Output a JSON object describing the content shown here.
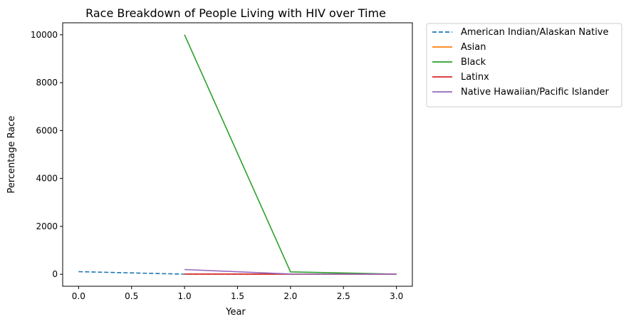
{
  "chart_data": {
    "type": "line",
    "title": "Race Breakdown of People Living with HIV over Time",
    "xlabel": "Year",
    "ylabel": "Percentage Race",
    "xlim": [
      -0.15,
      3.15
    ],
    "ylim": [
      -500,
      10500
    ],
    "xticks": [
      0.0,
      0.5,
      1.0,
      1.5,
      2.0,
      2.5,
      3.0
    ],
    "xtick_labels": [
      "0.0",
      "0.5",
      "1.0",
      "1.5",
      "2.0",
      "2.5",
      "3.0"
    ],
    "yticks": [
      0,
      2000,
      4000,
      6000,
      8000,
      10000
    ],
    "ytick_labels": [
      "0",
      "2000",
      "4000",
      "6000",
      "8000",
      "10000"
    ],
    "grid": false,
    "legend_position": "outside-right-top",
    "series": [
      {
        "name": "American Indian/Alaskan Native",
        "color": "#1f77b4",
        "dashed": true,
        "x": [
          0,
          1,
          2,
          3
        ],
        "y": [
          110,
          5,
          5,
          5
        ]
      },
      {
        "name": "Asian",
        "color": "#ff7f0e",
        "dashed": false,
        "x": [
          1,
          2,
          3
        ],
        "y": [
          10,
          5,
          5
        ]
      },
      {
        "name": "Black",
        "color": "#2ca02c",
        "dashed": false,
        "x": [
          1,
          2,
          3
        ],
        "y": [
          10000,
          100,
          5
        ]
      },
      {
        "name": "Latinx",
        "color": "#d62728",
        "dashed": false,
        "x": [
          1,
          2,
          3
        ],
        "y": [
          10,
          5,
          5
        ]
      },
      {
        "name": "Native Hawaiian/Pacific Islander",
        "color": "#9467bd",
        "dashed": false,
        "x": [
          1,
          2,
          3
        ],
        "y": [
          200,
          10,
          5
        ]
      }
    ]
  }
}
